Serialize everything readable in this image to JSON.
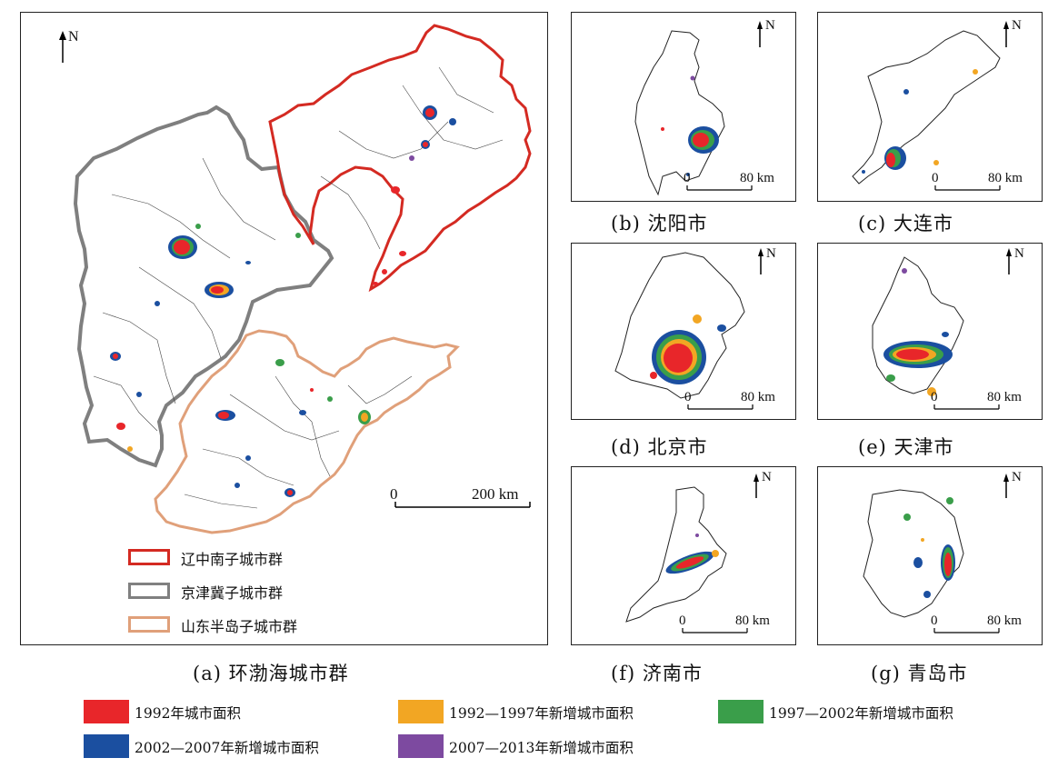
{
  "main_map": {
    "caption": "(a) 环渤海城市群",
    "north": "N",
    "scale_start": "0",
    "scale_end": "200 km",
    "legend": [
      {
        "label": "辽中南子城市群",
        "color": "#d42a22"
      },
      {
        "label": "京津冀子城市群",
        "color": "#808080"
      },
      {
        "label": "山东半岛子城市群",
        "color": "#e0a07a"
      }
    ]
  },
  "city_maps": [
    {
      "caption": "(b) 沈阳市",
      "north": "N",
      "scale_start": "0",
      "scale_end": "80 km"
    },
    {
      "caption": "(c) 大连市",
      "north": "N",
      "scale_start": "0",
      "scale_end": "80 km"
    },
    {
      "caption": "(d) 北京市",
      "north": "N",
      "scale_start": "0",
      "scale_end": "80 km"
    },
    {
      "caption": "(e) 天津市",
      "north": "N",
      "scale_start": "0",
      "scale_end": "80 km"
    },
    {
      "caption": "(f) 济南市",
      "north": "N",
      "scale_start": "0",
      "scale_end": "80 km"
    },
    {
      "caption": "(g) 青岛市",
      "north": "N",
      "scale_start": "0",
      "scale_end": "80 km"
    }
  ],
  "period_legend": [
    {
      "label": "1992年城市面积",
      "color": "#e8262a"
    },
    {
      "label": "1992—1997年新增城市面积",
      "color": "#f2a623"
    },
    {
      "label": "1997—2002年新增城市面积",
      "color": "#3a9e4a"
    },
    {
      "label": "2002—2007年新增城市面积",
      "color": "#1b4fa0"
    },
    {
      "label": "2007—2013年新增城市面积",
      "color": "#7d4aa0"
    }
  ]
}
